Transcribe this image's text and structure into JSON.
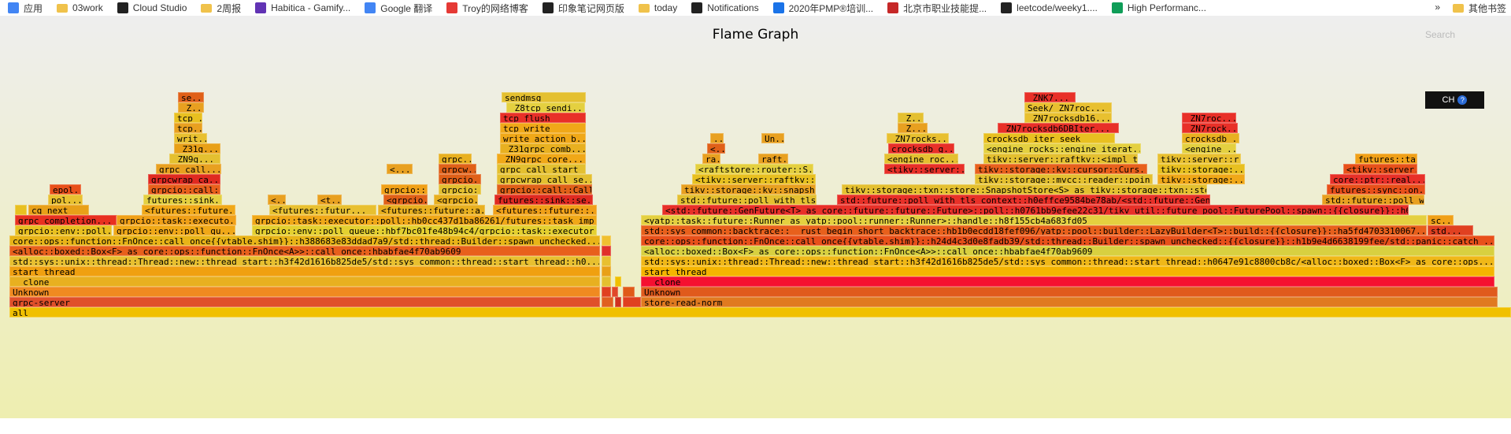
{
  "bookmarks": [
    {
      "label": "应用",
      "icon": "apps-grid-icon",
      "color": "#4285f4"
    },
    {
      "label": "03work",
      "icon": "folder-icon",
      "color": "#f0c24b"
    },
    {
      "label": "Cloud Studio",
      "icon": "cloud-studio-icon",
      "color": "#222222"
    },
    {
      "label": "2周报",
      "icon": "folder-icon",
      "color": "#f0c24b"
    },
    {
      "label": "Habitica - Gamify...",
      "icon": "habitica-icon",
      "color": "#6133b4"
    },
    {
      "label": "Google 翻译",
      "icon": "google-translate-icon",
      "color": "#4285f4"
    },
    {
      "label": "Troy的网络博客",
      "icon": "troy-blog-icon",
      "color": "#e53935"
    },
    {
      "label": "印象笔记网页版",
      "icon": "evernote-icon",
      "color": "#222222"
    },
    {
      "label": "today",
      "icon": "folder-icon",
      "color": "#f0c24b"
    },
    {
      "label": "Notifications",
      "icon": "github-icon",
      "color": "#222222"
    },
    {
      "label": "2020年PMP®培训...",
      "icon": "edge-icon",
      "color": "#1a73e8"
    },
    {
      "label": "北京市职业技能提...",
      "icon": "bj-site-icon",
      "color": "#c62828"
    },
    {
      "label": "leetcode/weeky1....",
      "icon": "github-icon",
      "color": "#222222"
    },
    {
      "label": "High Performanc...",
      "icon": "sheets-icon",
      "color": "#0f9d58"
    }
  ],
  "bookmarks_more": "»",
  "other_bookmarks": "其他书签",
  "title": "Flame Graph",
  "search_label": "Search",
  "ch_label": "CH",
  "help_icon_text": "?",
  "frames": [
    {
      "l": "all",
      "x": 0.006,
      "w": 0.994,
      "d": 0,
      "c": "#f0c000"
    },
    {
      "l": "grpc-server",
      "x": 0.006,
      "w": 0.391,
      "d": 1,
      "c": "#e0502a"
    },
    {
      "l": "",
      "x": 0.398,
      "w": 0.008,
      "d": 1,
      "c": "#e06020"
    },
    {
      "l": "",
      "x": 0.407,
      "w": 0.004,
      "d": 1,
      "c": "#d03020"
    },
    {
      "l": "",
      "x": 0.412,
      "w": 0.012,
      "d": 1,
      "c": "#e04020"
    },
    {
      "l": "store-read-norm",
      "x": 0.424,
      "w": 0.567,
      "d": 1,
      "c": "#e07a20"
    },
    {
      "l": "Unknown",
      "x": 0.006,
      "w": 0.391,
      "d": 2,
      "c": "#f08a20"
    },
    {
      "l": "",
      "x": 0.398,
      "w": 0.006,
      "d": 2,
      "c": "#e04020"
    },
    {
      "l": "",
      "x": 0.405,
      "w": 0.004,
      "d": 2,
      "c": "#e04828"
    },
    {
      "l": "",
      "x": 0.412,
      "w": 0.008,
      "d": 2,
      "c": "#e05a18"
    },
    {
      "l": "Unknown",
      "x": 0.424,
      "w": 0.567,
      "d": 2,
      "c": "#e05a1c"
    },
    {
      "l": "__clone",
      "x": 0.006,
      "w": 0.391,
      "d": 3,
      "c": "#e8b020"
    },
    {
      "l": "",
      "x": 0.398,
      "w": 0.006,
      "d": 3,
      "c": "#e4c030"
    },
    {
      "l": "",
      "x": 0.407,
      "w": 0.004,
      "d": 3,
      "c": "#f0c000"
    },
    {
      "l": "__clone",
      "x": 0.424,
      "w": 0.565,
      "d": 3,
      "c": "#f51030"
    },
    {
      "l": "start_thread",
      "x": 0.006,
      "w": 0.391,
      "d": 4,
      "c": "#f0a010"
    },
    {
      "l": "",
      "x": 0.398,
      "w": 0.006,
      "d": 4,
      "c": "#e8a018"
    },
    {
      "l": "start_thread",
      "x": 0.424,
      "w": 0.565,
      "d": 4,
      "c": "#f5b400"
    },
    {
      "l": "std::sys::unix::thread::Thread::new::thread_start::h3f42d1616b825de5/std::sys_common::thread::start_thread::h0...",
      "x": 0.006,
      "w": 0.391,
      "d": 5,
      "c": "#e8c030"
    },
    {
      "l": "",
      "x": 0.398,
      "w": 0.006,
      "d": 5,
      "c": "#e8c030"
    },
    {
      "l": "std::sys::unix::thread::Thread::new::thread_start::h3f42d1616b825de5/std::sys_common::thread::start_thread::h0647e91c8800cb8c/<alloc::boxed::Box<F> as core::ops...",
      "x": 0.424,
      "w": 0.565,
      "d": 5,
      "c": "#f0b818"
    },
    {
      "l": "<alloc::boxed::Box<F> as core::ops::function::FnOnce<A>>::call_once::hbabfae4f70ab9609",
      "x": 0.006,
      "w": 0.391,
      "d": 6,
      "c": "#e8601c"
    },
    {
      "l": "",
      "x": 0.398,
      "w": 0.006,
      "d": 6,
      "c": "#e0302a"
    },
    {
      "l": "<alloc::boxed::Box<F> as core::ops::function::FnOnce<A>>::call_once::hbabfae4f70ab9609",
      "x": 0.424,
      "w": 0.565,
      "d": 6,
      "c": "#d8d040"
    },
    {
      "l": "core::ops::function::FnOnce::call_once{{vtable.shim}}::h388683e83ddad7a9/std::thread::Builder::spawn_unchecked...",
      "x": 0.006,
      "w": 0.391,
      "d": 7,
      "c": "#e8b418"
    },
    {
      "l": "",
      "x": 0.398,
      "w": 0.006,
      "d": 7,
      "c": "#f0c030"
    },
    {
      "l": "core::ops::function::FnOnce::call_once{{vtable.shim}}::h24d4c3d0e8fadb39/std::thread::Builder::spawn_unchecked::{{closure}}::h1b9e4d6638199fee/std::panic::catch_...",
      "x": 0.424,
      "w": 0.565,
      "d": 7,
      "c": "#e8501a"
    },
    {
      "l": "grpcio::env::poll_queue::hbf7bc01fe48b94c4/grpcio::task::executor...",
      "x": 0.167,
      "w": 0.228,
      "d": 8,
      "c": "#e4d030"
    },
    {
      "l": "grpcio::env::poll...",
      "x": 0.01,
      "w": 0.064,
      "d": 8,
      "c": "#e8c020"
    },
    {
      "l": "grpcio::env::poll_qu...",
      "x": 0.075,
      "w": 0.081,
      "d": 8,
      "c": "#f0a818"
    },
    {
      "l": "std::sys_common::backtrace::__rust_begin_short_backtrace::hb1b0ecdd18fef096/yatp::pool::builder::LazyBuilder<T>::build::{{closure}}::ha5fd4703310067...",
      "x": 0.424,
      "w": 0.52,
      "d": 8,
      "c": "#e8601c"
    },
    {
      "l": "std...",
      "x": 0.945,
      "w": 0.03,
      "d": 8,
      "c": "#e04020"
    },
    {
      "l": "grpc_completion...",
      "x": 0.01,
      "w": 0.067,
      "d": 9,
      "c": "#e83020"
    },
    {
      "l": "grpcio::task::executo...",
      "x": 0.077,
      "w": 0.079,
      "d": 9,
      "c": "#f0a018"
    },
    {
      "l": "grpcio::task::executor::poll::hb0cc437d1ba86261/futures::task_imp...",
      "x": 0.167,
      "w": 0.228,
      "d": 9,
      "c": "#f0a818"
    },
    {
      "l": "<yatp::task::future::Runner as yatp::pool::runner::Runner>::handle::h8f155cb4a683fd05",
      "x": 0.424,
      "w": 0.52,
      "d": 9,
      "c": "#e4d040"
    },
    {
      "l": "sc...",
      "x": 0.945,
      "w": 0.017,
      "d": 9,
      "c": "#f0a018"
    },
    {
      "l": "",
      "x": 0.01,
      "w": 0.008,
      "d": 10,
      "c": "#e8c020"
    },
    {
      "l": "cq_next",
      "x": 0.019,
      "w": 0.04,
      "d": 10,
      "c": "#e8a018"
    },
    {
      "l": "<futures::future...",
      "x": 0.094,
      "w": 0.062,
      "d": 10,
      "c": "#f0a818"
    },
    {
      "l": "<futures::futur...",
      "x": 0.178,
      "w": 0.071,
      "d": 10,
      "c": "#e8c030"
    },
    {
      "l": "<futures::future::a...",
      "x": 0.25,
      "w": 0.071,
      "d": 10,
      "c": "#e8b020"
    },
    {
      "l": "<futures::future::...",
      "x": 0.326,
      "w": 0.069,
      "d": 10,
      "c": "#f0a018"
    },
    {
      "l": "<std::future::GenFuture<T> as core::future::future::Future>::poll::h0761bb9efee22c31/tikv_util::future_pool::FuturePool::spawn::{{closure}}::h6dc802...",
      "x": 0.438,
      "w": 0.494,
      "d": 10,
      "c": "#e83028"
    },
    {
      "l": "pol...",
      "x": 0.032,
      "w": 0.023,
      "d": 11,
      "c": "#e8c030"
    },
    {
      "l": "futures::sink...",
      "x": 0.095,
      "w": 0.052,
      "d": 11,
      "c": "#e4d040"
    },
    {
      "l": "<...",
      "x": 0.177,
      "w": 0.012,
      "d": 11,
      "c": "#e8a020"
    },
    {
      "l": "<t...",
      "x": 0.21,
      "w": 0.016,
      "d": 11,
      "c": "#e8a020"
    },
    {
      "l": "<grpcio...",
      "x": 0.254,
      "w": 0.029,
      "d": 11,
      "c": "#e06018"
    },
    {
      "l": "<grpcio...",
      "x": 0.287,
      "w": 0.029,
      "d": 11,
      "c": "#e8b020"
    },
    {
      "l": "futures::sink::se...",
      "x": 0.327,
      "w": 0.065,
      "d": 11,
      "c": "#e02a20"
    },
    {
      "l": "std::future::poll_with_tls_...",
      "x": 0.448,
      "w": 0.092,
      "d": 11,
      "c": "#e4c030"
    },
    {
      "l": "std::future::poll_with_tls_context::h0effce9584be78ab/<std::future::GenFuture<T> a...",
      "x": 0.554,
      "w": 0.247,
      "d": 11,
      "c": "#e83028"
    },
    {
      "l": "std::future::poll_w...",
      "x": 0.875,
      "w": 0.068,
      "d": 11,
      "c": "#e8a020"
    },
    {
      "l": "epol...",
      "x": 0.033,
      "w": 0.021,
      "d": 12,
      "c": "#e8501a"
    },
    {
      "l": "grpcio::call::...",
      "x": 0.098,
      "w": 0.048,
      "d": 12,
      "c": "#e8601c"
    },
    {
      "l": "grpcio::...",
      "x": 0.252,
      "w": 0.031,
      "d": 12,
      "c": "#f0a018"
    },
    {
      "l": "grpcio::...",
      "x": 0.29,
      "w": 0.028,
      "d": 12,
      "c": "#e4c030"
    },
    {
      "l": "grpcio::call::Call:...",
      "x": 0.329,
      "w": 0.063,
      "d": 12,
      "c": "#e06018"
    },
    {
      "l": "tikv::storage::kv::snapsho...",
      "x": 0.451,
      "w": 0.089,
      "d": 12,
      "c": "#e8a020"
    },
    {
      "l": "tikv::storage::txn::store::SnapshotStore<S> as tikv::storage::txn::store::Sto...",
      "x": 0.557,
      "w": 0.242,
      "d": 12,
      "c": "#e4c030"
    },
    {
      "l": "futures::sync::on...",
      "x": 0.878,
      "w": 0.065,
      "d": 12,
      "c": "#e8501a"
    },
    {
      "l": "grpcwrap_ca...",
      "x": 0.098,
      "w": 0.048,
      "d": 13,
      "c": "#e02a20"
    },
    {
      "l": "grpcio...",
      "x": 0.29,
      "w": 0.028,
      "d": 13,
      "c": "#e06018"
    },
    {
      "l": "grpcwrap_call_se...",
      "x": 0.329,
      "w": 0.063,
      "d": 13,
      "c": "#e4c030"
    },
    {
      "l": "<tikv::server::raftkv::Ra...",
      "x": 0.458,
      "w": 0.082,
      "d": 13,
      "c": "#e8c020"
    },
    {
      "l": "tikv::storage::mvcc::reader::poin...",
      "x": 0.645,
      "w": 0.118,
      "d": 13,
      "c": "#e4c030"
    },
    {
      "l": "tikv::storage:...",
      "x": 0.766,
      "w": 0.058,
      "d": 13,
      "c": "#f0a818"
    },
    {
      "l": "core::ptr::real...",
      "x": 0.88,
      "w": 0.063,
      "d": 13,
      "c": "#e83028"
    },
    {
      "l": "grpc_call...",
      "x": 0.103,
      "w": 0.043,
      "d": 14,
      "c": "#e8a020"
    },
    {
      "l": "<...",
      "x": 0.256,
      "w": 0.017,
      "d": 14,
      "c": "#e8a020"
    },
    {
      "l": "grpcw...",
      "x": 0.29,
      "w": 0.025,
      "d": 14,
      "c": "#e06018"
    },
    {
      "l": "grpc_call_start_...",
      "x": 0.329,
      "w": 0.059,
      "d": 14,
      "c": "#e4c030"
    },
    {
      "l": "<raftstore::router::S...",
      "x": 0.46,
      "w": 0.078,
      "d": 14,
      "c": "#e4d040"
    },
    {
      "l": "<tikv::server:...",
      "x": 0.585,
      "w": 0.053,
      "d": 14,
      "c": "#e83028"
    },
    {
      "l": "tikv::storage::kv::cursor::Curs...",
      "x": 0.645,
      "w": 0.114,
      "d": 14,
      "c": "#e8601c"
    },
    {
      "l": "tikv::storage:...",
      "x": 0.766,
      "w": 0.058,
      "d": 14,
      "c": "#e8c020"
    },
    {
      "l": "<tikv::server...",
      "x": 0.889,
      "w": 0.049,
      "d": 14,
      "c": "#e8501a"
    },
    {
      "l": "_ZN9g...",
      "x": 0.112,
      "w": 0.034,
      "d": 15,
      "c": "#e4c030"
    },
    {
      "l": "grpc...",
      "x": 0.29,
      "w": 0.022,
      "d": 15,
      "c": "#e8b020"
    },
    {
      "l": "_ZN9grpc_core...",
      "x": 0.329,
      "w": 0.059,
      "d": 15,
      "c": "#f0a818"
    },
    {
      "l": "ra...",
      "x": 0.465,
      "w": 0.012,
      "d": 15,
      "c": "#e8a020"
    },
    {
      "l": "raft...",
      "x": 0.502,
      "w": 0.02,
      "d": 15,
      "c": "#e8a020"
    },
    {
      "l": "<engine_roc...",
      "x": 0.585,
      "w": 0.049,
      "d": 15,
      "c": "#e4c030"
    },
    {
      "l": "tikv::server::raftkv::<impl tik...",
      "x": 0.651,
      "w": 0.102,
      "d": 15,
      "c": "#e4c030"
    },
    {
      "l": "tikv::server::r...",
      "x": 0.766,
      "w": 0.055,
      "d": 15,
      "c": "#e8c030"
    },
    {
      "l": "futures::ta...",
      "x": 0.897,
      "w": 0.041,
      "d": 15,
      "c": "#f0a018"
    },
    {
      "l": "_Z31g...",
      "x": 0.115,
      "w": 0.031,
      "d": 16,
      "c": "#e8a018"
    },
    {
      "l": "_Z31grpc_comb...",
      "x": 0.331,
      "w": 0.057,
      "d": 16,
      "c": "#e8b020"
    },
    {
      "l": "<...",
      "x": 0.468,
      "w": 0.012,
      "d": 16,
      "c": "#e06018"
    },
    {
      "l": "crocksdb_g...",
      "x": 0.588,
      "w": 0.044,
      "d": 16,
      "c": "#e83028"
    },
    {
      "l": "<engine_rocks::engine_iterat...",
      "x": 0.651,
      "w": 0.104,
      "d": 16,
      "c": "#e4d040"
    },
    {
      "l": "<engine_...",
      "x": 0.782,
      "w": 0.036,
      "d": 16,
      "c": "#e4d040"
    },
    {
      "l": "writ...",
      "x": 0.115,
      "w": 0.022,
      "d": 17,
      "c": "#e8c030"
    },
    {
      "l": "write_action_b...",
      "x": 0.331,
      "w": 0.057,
      "d": 17,
      "c": "#f0a818"
    },
    {
      "l": "...",
      "x": 0.47,
      "w": 0.009,
      "d": 17,
      "c": "#e8a020"
    },
    {
      "l": "Un...",
      "x": 0.504,
      "w": 0.015,
      "d": 17,
      "c": "#e8a020"
    },
    {
      "l": "_ZN7rocks...",
      "x": 0.587,
      "w": 0.041,
      "d": 17,
      "c": "#e8c030"
    },
    {
      "l": "crocksdb_iter_seek",
      "x": 0.651,
      "w": 0.087,
      "d": 17,
      "c": "#e8c020"
    },
    {
      "l": "crocksdb_...",
      "x": 0.782,
      "w": 0.038,
      "d": 17,
      "c": "#e8b020"
    },
    {
      "l": "tcp...",
      "x": 0.115,
      "w": 0.019,
      "d": 18,
      "c": "#e8a020"
    },
    {
      "l": "tcp_write",
      "x": 0.331,
      "w": 0.057,
      "d": 18,
      "c": "#f0a818"
    },
    {
      "l": "_Z...",
      "x": 0.594,
      "w": 0.02,
      "d": 18,
      "c": "#e8a020"
    },
    {
      "l": "_ZN7rocksdb6DBIter...",
      "x": 0.66,
      "w": 0.08,
      "d": 18,
      "c": "#e83028"
    },
    {
      "l": "_ZN7rock...",
      "x": 0.782,
      "w": 0.037,
      "d": 18,
      "c": "#e83028"
    },
    {
      "l": "tcp_...",
      "x": 0.115,
      "w": 0.019,
      "d": 19,
      "c": "#e8c020"
    },
    {
      "l": "tcp_flush",
      "x": 0.331,
      "w": 0.057,
      "d": 19,
      "c": "#e83028"
    },
    {
      "l": "_Z...",
      "x": 0.594,
      "w": 0.017,
      "d": 19,
      "c": "#e4c030"
    },
    {
      "l": "_ZN7rocksdb16...",
      "x": 0.678,
      "w": 0.058,
      "d": 19,
      "c": "#e8c030"
    },
    {
      "l": "_ZN7roc...",
      "x": 0.782,
      "w": 0.036,
      "d": 19,
      "c": "#e83028"
    },
    {
      "l": "_Z...",
      "x": 0.118,
      "w": 0.017,
      "d": 20,
      "c": "#e8a020"
    },
    {
      "l": "_Z8tcp_sendi...",
      "x": 0.335,
      "w": 0.052,
      "d": 20,
      "c": "#e4d040"
    },
    {
      "l": "Seek/_ZN7roc...",
      "x": 0.678,
      "w": 0.058,
      "d": 20,
      "c": "#e8c030"
    },
    {
      "l": "se...",
      "x": 0.118,
      "w": 0.017,
      "d": 21,
      "c": "#e06018"
    },
    {
      "l": "sendmsg",
      "x": 0.332,
      "w": 0.056,
      "d": 21,
      "c": "#e4c030"
    },
    {
      "l": "_ZNK7...",
      "x": 0.678,
      "w": 0.034,
      "d": 21,
      "c": "#e83028"
    }
  ]
}
